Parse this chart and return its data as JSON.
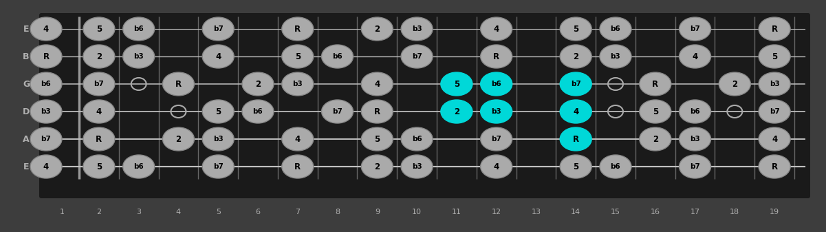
{
  "fig_w": 12.01,
  "fig_h": 3.37,
  "dpi": 100,
  "bg_color": "#3d3d3d",
  "fretboard_color": "#1a1a1a",
  "string_color": "#c0c0c0",
  "fret_color": "#666666",
  "note_gray_face": "#aaaaaa",
  "note_gray_edge": "#888888",
  "note_cyan_face": "#00d8d8",
  "note_cyan_edge": "#00d8d8",
  "note_text_color": "#000000",
  "label_color": "#b0b0b0",
  "strings": [
    "E",
    "B",
    "G",
    "D",
    "A",
    "E"
  ],
  "fret_count": 19,
  "notes": [
    {
      "s": 0,
      "f": 0,
      "l": "4",
      "t": "g"
    },
    {
      "s": 0,
      "f": 2,
      "l": "5",
      "t": "g"
    },
    {
      "s": 0,
      "f": 3,
      "l": "b6",
      "t": "g"
    },
    {
      "s": 0,
      "f": 5,
      "l": "b7",
      "t": "g"
    },
    {
      "s": 0,
      "f": 7,
      "l": "R",
      "t": "g"
    },
    {
      "s": 0,
      "f": 9,
      "l": "2",
      "t": "g"
    },
    {
      "s": 0,
      "f": 10,
      "l": "b3",
      "t": "g"
    },
    {
      "s": 0,
      "f": 12,
      "l": "4",
      "t": "g"
    },
    {
      "s": 0,
      "f": 14,
      "l": "5",
      "t": "g"
    },
    {
      "s": 0,
      "f": 15,
      "l": "b6",
      "t": "g"
    },
    {
      "s": 0,
      "f": 17,
      "l": "b7",
      "t": "g"
    },
    {
      "s": 0,
      "f": 19,
      "l": "R",
      "t": "g"
    },
    {
      "s": 1,
      "f": 0,
      "l": "R",
      "t": "g"
    },
    {
      "s": 1,
      "f": 2,
      "l": "2",
      "t": "g"
    },
    {
      "s": 1,
      "f": 3,
      "l": "b3",
      "t": "g"
    },
    {
      "s": 1,
      "f": 5,
      "l": "4",
      "t": "g"
    },
    {
      "s": 1,
      "f": 7,
      "l": "5",
      "t": "g"
    },
    {
      "s": 1,
      "f": 8,
      "l": "b6",
      "t": "g"
    },
    {
      "s": 1,
      "f": 10,
      "l": "b7",
      "t": "g"
    },
    {
      "s": 1,
      "f": 12,
      "l": "R",
      "t": "g"
    },
    {
      "s": 1,
      "f": 14,
      "l": "2",
      "t": "g"
    },
    {
      "s": 1,
      "f": 15,
      "l": "b3",
      "t": "g"
    },
    {
      "s": 1,
      "f": 17,
      "l": "4",
      "t": "g"
    },
    {
      "s": 1,
      "f": 19,
      "l": "5",
      "t": "g"
    },
    {
      "s": 2,
      "f": 0,
      "l": "b6",
      "t": "g"
    },
    {
      "s": 2,
      "f": 2,
      "l": "b7",
      "t": "g"
    },
    {
      "s": 2,
      "f": 4,
      "l": "R",
      "t": "g"
    },
    {
      "s": 2,
      "f": 6,
      "l": "2",
      "t": "g"
    },
    {
      "s": 2,
      "f": 7,
      "l": "b3",
      "t": "g"
    },
    {
      "s": 2,
      "f": 9,
      "l": "4",
      "t": "g"
    },
    {
      "s": 2,
      "f": 11,
      "l": "5",
      "t": "c"
    },
    {
      "s": 2,
      "f": 12,
      "l": "b6",
      "t": "c"
    },
    {
      "s": 2,
      "f": 14,
      "l": "b7",
      "t": "c"
    },
    {
      "s": 2,
      "f": 16,
      "l": "R",
      "t": "g"
    },
    {
      "s": 2,
      "f": 18,
      "l": "2",
      "t": "g"
    },
    {
      "s": 2,
      "f": 19,
      "l": "b3",
      "t": "g"
    },
    {
      "s": 3,
      "f": 0,
      "l": "b3",
      "t": "g"
    },
    {
      "s": 3,
      "f": 2,
      "l": "4",
      "t": "g"
    },
    {
      "s": 3,
      "f": 5,
      "l": "5",
      "t": "g"
    },
    {
      "s": 3,
      "f": 6,
      "l": "b6",
      "t": "g"
    },
    {
      "s": 3,
      "f": 8,
      "l": "b7",
      "t": "g"
    },
    {
      "s": 3,
      "f": 9,
      "l": "R",
      "t": "g"
    },
    {
      "s": 3,
      "f": 11,
      "l": "2",
      "t": "c"
    },
    {
      "s": 3,
      "f": 12,
      "l": "b3",
      "t": "c"
    },
    {
      "s": 3,
      "f": 14,
      "l": "4",
      "t": "c"
    },
    {
      "s": 3,
      "f": 16,
      "l": "5",
      "t": "g"
    },
    {
      "s": 3,
      "f": 17,
      "l": "b6",
      "t": "g"
    },
    {
      "s": 3,
      "f": 19,
      "l": "b7",
      "t": "g"
    },
    {
      "s": 4,
      "f": 0,
      "l": "b7",
      "t": "g"
    },
    {
      "s": 4,
      "f": 2,
      "l": "R",
      "t": "g"
    },
    {
      "s": 4,
      "f": 4,
      "l": "2",
      "t": "g"
    },
    {
      "s": 4,
      "f": 5,
      "l": "b3",
      "t": "g"
    },
    {
      "s": 4,
      "f": 7,
      "l": "4",
      "t": "g"
    },
    {
      "s": 4,
      "f": 9,
      "l": "5",
      "t": "g"
    },
    {
      "s": 4,
      "f": 10,
      "l": "b6",
      "t": "g"
    },
    {
      "s": 4,
      "f": 12,
      "l": "b7",
      "t": "g"
    },
    {
      "s": 4,
      "f": 14,
      "l": "R",
      "t": "c"
    },
    {
      "s": 4,
      "f": 16,
      "l": "2",
      "t": "g"
    },
    {
      "s": 4,
      "f": 17,
      "l": "b3",
      "t": "g"
    },
    {
      "s": 4,
      "f": 19,
      "l": "4",
      "t": "g"
    },
    {
      "s": 5,
      "f": 0,
      "l": "4",
      "t": "g"
    },
    {
      "s": 5,
      "f": 2,
      "l": "5",
      "t": "g"
    },
    {
      "s": 5,
      "f": 3,
      "l": "b6",
      "t": "g"
    },
    {
      "s": 5,
      "f": 5,
      "l": "b7",
      "t": "g"
    },
    {
      "s": 5,
      "f": 7,
      "l": "R",
      "t": "g"
    },
    {
      "s": 5,
      "f": 9,
      "l": "2",
      "t": "g"
    },
    {
      "s": 5,
      "f": 10,
      "l": "b3",
      "t": "g"
    },
    {
      "s": 5,
      "f": 12,
      "l": "4",
      "t": "g"
    },
    {
      "s": 5,
      "f": 14,
      "l": "5",
      "t": "g"
    },
    {
      "s": 5,
      "f": 15,
      "l": "b6",
      "t": "g"
    },
    {
      "s": 5,
      "f": 17,
      "l": "b7",
      "t": "g"
    },
    {
      "s": 5,
      "f": 19,
      "l": "R",
      "t": "g"
    }
  ],
  "open_rings": [
    {
      "s": 2,
      "f": 3
    },
    {
      "s": 2,
      "f": 9
    },
    {
      "s": 2,
      "f": 15
    },
    {
      "s": 2,
      "f": 18
    },
    {
      "s": 3,
      "f": 4
    },
    {
      "s": 3,
      "f": 9
    },
    {
      "s": 3,
      "f": 12
    },
    {
      "s": 3,
      "f": 15
    },
    {
      "s": 3,
      "f": 18
    },
    {
      "s": 4,
      "f": 12
    }
  ]
}
